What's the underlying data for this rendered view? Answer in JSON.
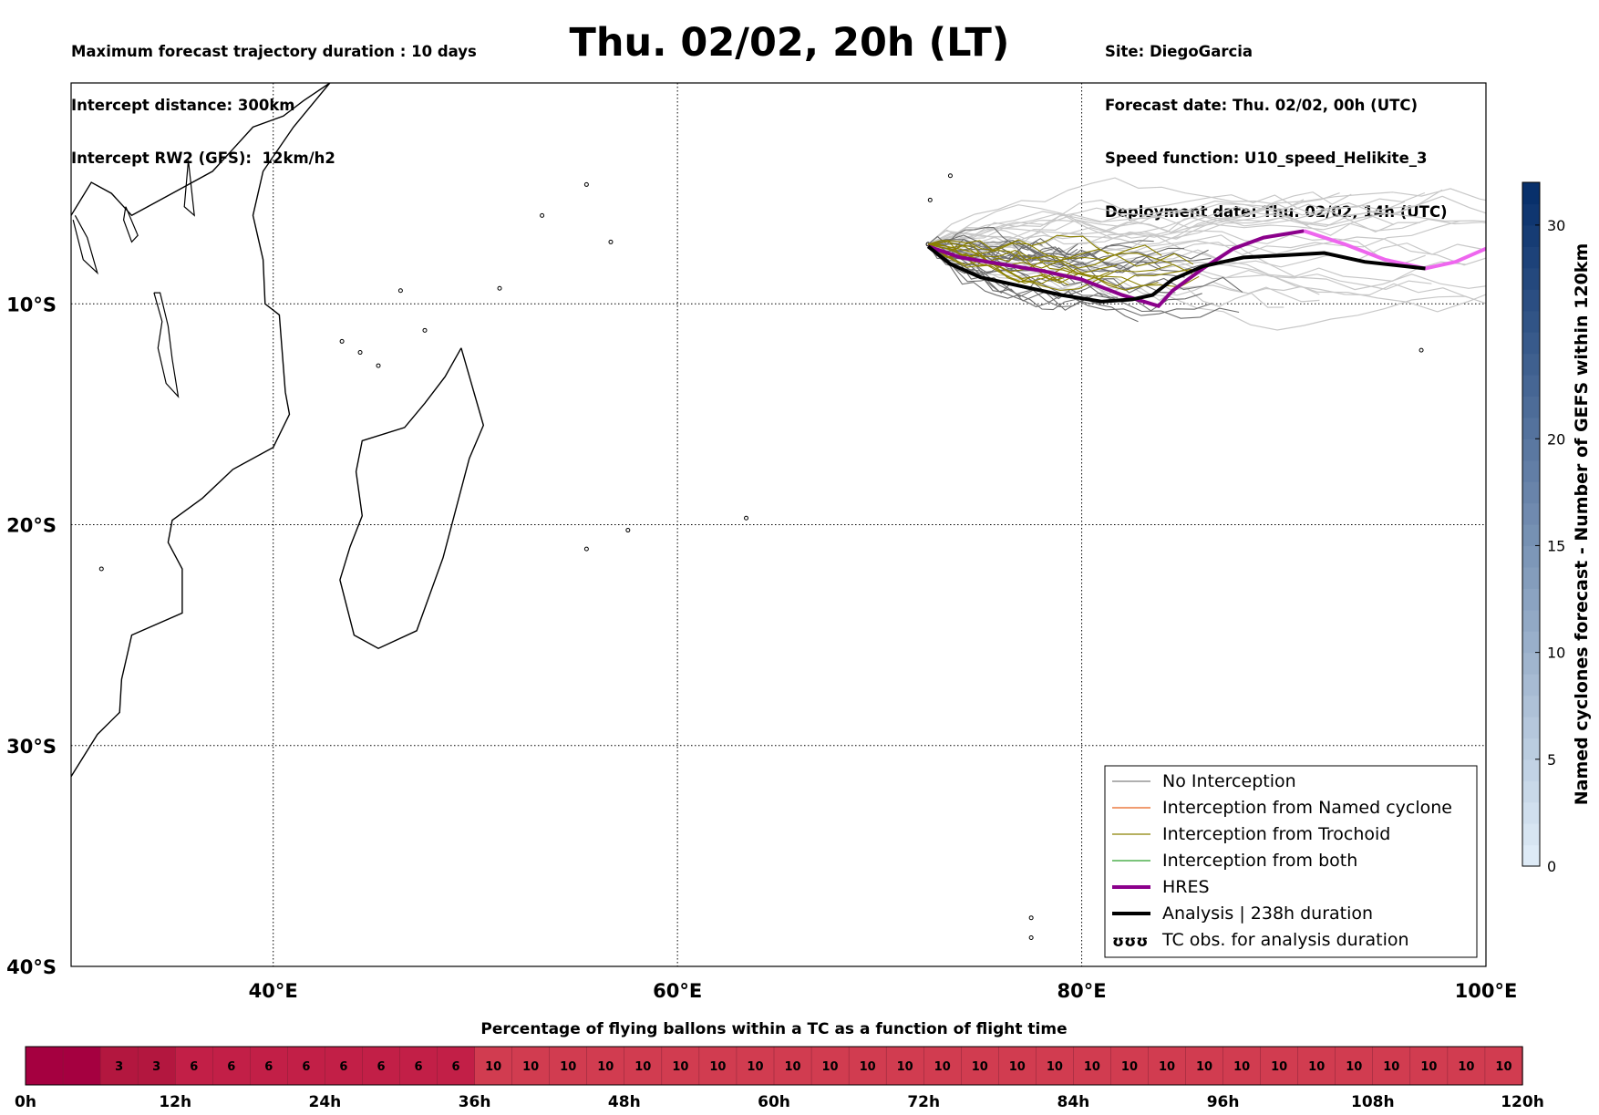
{
  "header": {
    "left_lines": [
      "Maximum forecast trajectory duration : 10 days",
      "Intercept distance: 300km",
      "Intercept RW2 (GFS):  12km/h2"
    ],
    "title": "Thu. 02/02, 20h (LT)",
    "right_lines": [
      "Site: DiegoGarcia",
      "Forecast date: Thu. 02/02, 00h (UTC)",
      "Speed function: U10_speed_Helikite_3",
      "Deployment date: Thu. 02/02, 14h (UTC)"
    ]
  },
  "map": {
    "lon_range": [
      30,
      100
    ],
    "lat_range": [
      -40,
      0
    ],
    "lon_ticks": [
      {
        "value": 40,
        "label": "40°E"
      },
      {
        "value": 60,
        "label": "60°E"
      },
      {
        "value": 80,
        "label": "80°E"
      },
      {
        "value": 100,
        "label": "100°E"
      }
    ],
    "lat_ticks": [
      {
        "value": -10,
        "label": "10°S"
      },
      {
        "value": -20,
        "label": "20°S"
      },
      {
        "value": -30,
        "label": "30°S"
      },
      {
        "value": -40,
        "label": "40°S"
      }
    ],
    "gridlines": true,
    "africa_coast": [
      [
        30,
        -6
      ],
      [
        31,
        -4.5
      ],
      [
        32,
        -5
      ],
      [
        33,
        -6
      ],
      [
        35,
        -5
      ],
      [
        37,
        -4
      ],
      [
        38,
        -3
      ],
      [
        39,
        -2
      ],
      [
        40.5,
        -1.5
      ],
      [
        41.5,
        -0.8
      ],
      [
        42.8,
        0
      ],
      [
        41,
        -2
      ],
      [
        39.5,
        -4
      ],
      [
        39,
        -6
      ],
      [
        39.5,
        -8
      ],
      [
        39.6,
        -10
      ],
      [
        40.3,
        -10.5
      ],
      [
        40.6,
        -14
      ],
      [
        40.8,
        -15
      ],
      [
        40,
        -16.5
      ],
      [
        38,
        -17.5
      ],
      [
        36.5,
        -18.8
      ],
      [
        35,
        -19.8
      ],
      [
        34.8,
        -20.8
      ],
      [
        35.5,
        -22
      ],
      [
        35.5,
        -24
      ],
      [
        33,
        -25
      ],
      [
        32.8,
        -25.8
      ],
      [
        32.5,
        -27
      ],
      [
        32.4,
        -28.5
      ],
      [
        31.3,
        -29.5
      ],
      [
        30,
        -31.4
      ]
    ],
    "lakes": [
      [
        [
          30.1,
          -6.2
        ],
        [
          30.6,
          -8
        ],
        [
          31.3,
          -8.6
        ],
        [
          30.8,
          -7
        ],
        [
          30.2,
          -6
        ]
      ],
      [
        [
          34.1,
          -9.5
        ],
        [
          34.5,
          -10.8
        ],
        [
          34.3,
          -12
        ],
        [
          34.7,
          -13.6
        ],
        [
          35.3,
          -14.2
        ],
        [
          35,
          -12.5
        ],
        [
          34.8,
          -11
        ],
        [
          34.4,
          -9.5
        ],
        [
          34.1,
          -9.5
        ]
      ],
      [
        [
          32.7,
          -5.6
        ],
        [
          33.3,
          -6.9
        ],
        [
          33,
          -7.2
        ],
        [
          32.6,
          -6.2
        ],
        [
          32.7,
          -5.6
        ]
      ],
      [
        [
          35.8,
          -3.5
        ],
        [
          36.1,
          -6
        ],
        [
          35.6,
          -5.6
        ],
        [
          35.8,
          -3.5
        ]
      ]
    ],
    "madagascar": [
      [
        49.3,
        -12
      ],
      [
        50.4,
        -15.5
      ],
      [
        49.7,
        -17
      ],
      [
        48.4,
        -21.5
      ],
      [
        47.1,
        -24.8
      ],
      [
        45.2,
        -25.6
      ],
      [
        44,
        -25
      ],
      [
        43.3,
        -22.5
      ],
      [
        43.8,
        -21
      ],
      [
        44.4,
        -19.6
      ],
      [
        44.1,
        -17.6
      ],
      [
        44.4,
        -16.2
      ],
      [
        46.5,
        -15.6
      ],
      [
        47.5,
        -14.5
      ],
      [
        48.5,
        -13.3
      ],
      [
        49.3,
        -12
      ]
    ],
    "islands": [
      [
        43.4,
        -11.7
      ],
      [
        44.3,
        -12.2
      ],
      [
        45.2,
        -12.8
      ],
      [
        55.5,
        -4.6
      ],
      [
        57.55,
        -20.25
      ],
      [
        55.5,
        -21.1
      ],
      [
        63.4,
        -19.7
      ],
      [
        72.4,
        -7.3
      ],
      [
        72.5,
        -5.3
      ],
      [
        73.5,
        -4.2
      ],
      [
        77.5,
        -37.8
      ],
      [
        77.5,
        -38.7
      ],
      [
        96.8,
        -12.1
      ],
      [
        105.6,
        -10.5
      ],
      [
        46.3,
        -9.4
      ],
      [
        51.2,
        -9.3
      ],
      [
        53.3,
        -6
      ],
      [
        56.7,
        -7.2
      ],
      [
        47.5,
        -11.2
      ],
      [
        31.5,
        -22
      ]
    ],
    "legend": {
      "items": [
        {
          "label": "No Interception",
          "color": "#808080"
        },
        {
          "label": "Interception from Named cyclone",
          "color": "#e8601c"
        },
        {
          "label": "Interception from Trochoid",
          "color": "#8b8000"
        },
        {
          "label": "Interception from both",
          "color": "#2ca02c"
        },
        {
          "label": "HRES",
          "color": "#8b008b"
        },
        {
          "label": "Analysis | 238h duration",
          "color": "#000000"
        },
        {
          "label": "TC obs. for analysis duration",
          "color": "#000000",
          "symbol": "ʊʊʊ"
        }
      ]
    },
    "hres_track": [
      [
        72.4,
        -7.4
      ],
      [
        74,
        -7.9
      ],
      [
        76,
        -8.2
      ],
      [
        78,
        -8.5
      ],
      [
        80,
        -8.9
      ],
      [
        82,
        -9.6
      ],
      [
        83.8,
        -10.1
      ],
      [
        84.5,
        -9.4
      ],
      [
        86,
        -8.4
      ],
      [
        87.5,
        -7.5
      ],
      [
        89,
        -7
      ],
      [
        91,
        -6.7
      ],
      [
        93,
        -7.3
      ],
      [
        95,
        -8
      ],
      [
        97,
        -8.4
      ],
      [
        98.5,
        -8.1
      ],
      [
        100,
        -7.5
      ]
    ],
    "hres_magenta_from_index": 11,
    "analysis_track": [
      [
        72.4,
        -7.4
      ],
      [
        73.5,
        -8.2
      ],
      [
        75,
        -8.8
      ],
      [
        77,
        -9.2
      ],
      [
        79,
        -9.6
      ],
      [
        81,
        -9.9
      ],
      [
        82.5,
        -9.8
      ],
      [
        83.5,
        -9.6
      ],
      [
        84.5,
        -8.9
      ],
      [
        86,
        -8.3
      ],
      [
        88,
        -7.9
      ],
      [
        90,
        -7.8
      ],
      [
        92,
        -7.7
      ],
      [
        94,
        -8.1
      ],
      [
        97,
        -8.4
      ]
    ],
    "origin": [
      72.4,
      -7.3
    ],
    "colorbar": {
      "label": "Named cyclones forecast - Number of GEFS within 120km",
      "ticks": [
        {
          "value": 0,
          "label": "0"
        },
        {
          "value": 5,
          "label": "5"
        },
        {
          "value": 10,
          "label": "10"
        },
        {
          "value": 15,
          "label": "15"
        },
        {
          "value": 20,
          "label": "20"
        },
        {
          "value": 30,
          "label": "30"
        }
      ],
      "range": [
        0,
        32
      ]
    }
  },
  "timeline": {
    "title": "Percentage of flying ballons within a TC as a function of flight time",
    "values": [
      0,
      0,
      3,
      3,
      6,
      6,
      6,
      6,
      6,
      6,
      6,
      6,
      10,
      10,
      10,
      10,
      10,
      10,
      10,
      10,
      10,
      10,
      10,
      10,
      10,
      10,
      10,
      10,
      10,
      10,
      10,
      10,
      10,
      10,
      10,
      10,
      10,
      10,
      10,
      10
    ],
    "colors": {
      "0": "#a50040",
      "3": "#b3173f",
      "6": "#c21f47",
      "10": "#d13c50"
    },
    "hour_labels": [
      "0h",
      "12h",
      "24h",
      "36h",
      "48h",
      "60h",
      "72h",
      "84h",
      "96h",
      "108h",
      "120h"
    ]
  }
}
